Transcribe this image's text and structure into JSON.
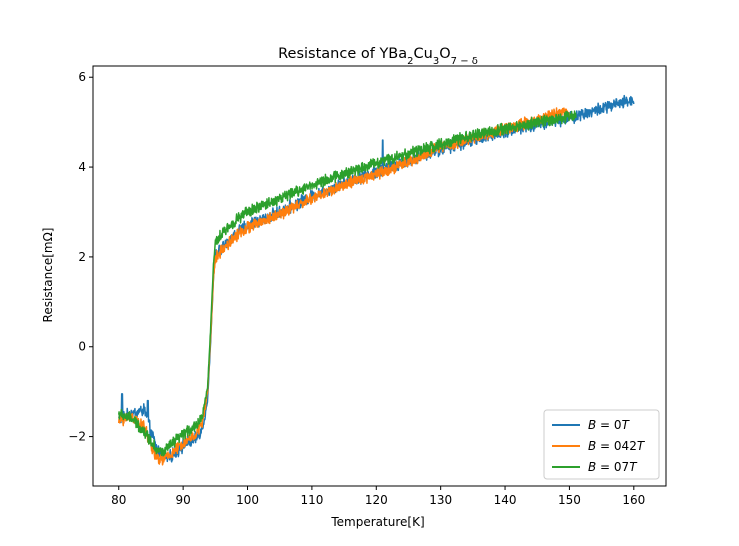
{
  "chart_data": {
    "type": "line",
    "title": {
      "text": "Resistance of YBa",
      "sub1": "2",
      "mid1": "Cu",
      "sub2": "3",
      "mid2": "O",
      "sub3": "7 − δ"
    },
    "xlabel": "Temperature[K]",
    "ylabel": "Resistance[mΩ]",
    "xlim": [
      76,
      165
    ],
    "ylim": [
      -3.1,
      6.25
    ],
    "xticks": [
      80,
      90,
      100,
      110,
      120,
      130,
      140,
      150,
      160
    ],
    "yticks": [
      -2,
      0,
      2,
      4,
      6
    ],
    "ytick_labels": [
      "−2",
      "0",
      "2",
      "4",
      "6"
    ],
    "grid": false,
    "legend_position": "lower right",
    "series": [
      {
        "name": "B = 0T",
        "label_var": "B",
        "label_val": "0",
        "label_unit": "T",
        "color": "#1f77b4",
        "noise": 0.11,
        "points": [
          [
            80,
            -1.6
          ],
          [
            82,
            -1.5
          ],
          [
            84,
            -1.4
          ],
          [
            85,
            -1.9
          ],
          [
            86,
            -2.3
          ],
          [
            87,
            -2.45
          ],
          [
            88,
            -2.45
          ],
          [
            90,
            -2.2
          ],
          [
            92,
            -2.05
          ],
          [
            93,
            -1.8
          ],
          [
            93.8,
            -1.2
          ],
          [
            94.3,
            0.2
          ],
          [
            94.7,
            1.5
          ],
          [
            95,
            2.0
          ],
          [
            96,
            2.2
          ],
          [
            98,
            2.5
          ],
          [
            100,
            2.7
          ],
          [
            105,
            3.0
          ],
          [
            110,
            3.35
          ],
          [
            115,
            3.65
          ],
          [
            120,
            3.9
          ],
          [
            125,
            4.15
          ],
          [
            130,
            4.4
          ],
          [
            135,
            4.6
          ],
          [
            140,
            4.8
          ],
          [
            145,
            4.95
          ],
          [
            150,
            5.1
          ],
          [
            155,
            5.3
          ],
          [
            160,
            5.5
          ]
        ],
        "spikes": [
          [
            121,
            4.6
          ],
          [
            84.5,
            -1.2
          ],
          [
            80.5,
            -1.05
          ]
        ]
      },
      {
        "name": "B = 042T",
        "label_var": "B",
        "label_val": "042",
        "label_unit": "T",
        "color": "#ff7f0e",
        "noise": 0.1,
        "points": [
          [
            80,
            -1.65
          ],
          [
            82,
            -1.55
          ],
          [
            84,
            -1.8
          ],
          [
            85,
            -2.2
          ],
          [
            86,
            -2.5
          ],
          [
            87,
            -2.5
          ],
          [
            88,
            -2.4
          ],
          [
            90,
            -2.15
          ],
          [
            92,
            -1.95
          ],
          [
            93,
            -1.7
          ],
          [
            93.8,
            -1.0
          ],
          [
            94.3,
            0.3
          ],
          [
            94.7,
            1.5
          ],
          [
            95,
            1.95
          ],
          [
            96,
            2.15
          ],
          [
            98,
            2.45
          ],
          [
            100,
            2.65
          ],
          [
            105,
            2.95
          ],
          [
            110,
            3.3
          ],
          [
            115,
            3.6
          ],
          [
            120,
            3.85
          ],
          [
            125,
            4.1
          ],
          [
            130,
            4.45
          ],
          [
            135,
            4.65
          ],
          [
            140,
            4.85
          ],
          [
            145,
            5.05
          ],
          [
            150,
            5.25
          ]
        ],
        "spikes": []
      },
      {
        "name": "B = 07T",
        "label_var": "B",
        "label_val": "07",
        "label_unit": "T",
        "color": "#2ca02c",
        "noise": 0.1,
        "points": [
          [
            80,
            -1.5
          ],
          [
            82,
            -1.6
          ],
          [
            84,
            -1.9
          ],
          [
            85,
            -2.1
          ],
          [
            86,
            -2.3
          ],
          [
            87,
            -2.35
          ],
          [
            88,
            -2.2
          ],
          [
            90,
            -1.95
          ],
          [
            92,
            -1.75
          ],
          [
            93,
            -1.55
          ],
          [
            93.8,
            -0.9
          ],
          [
            94.3,
            0.5
          ],
          [
            94.7,
            1.8
          ],
          [
            95,
            2.3
          ],
          [
            96,
            2.5
          ],
          [
            98,
            2.8
          ],
          [
            100,
            3.0
          ],
          [
            105,
            3.3
          ],
          [
            110,
            3.6
          ],
          [
            115,
            3.85
          ],
          [
            120,
            4.1
          ],
          [
            125,
            4.3
          ],
          [
            130,
            4.5
          ],
          [
            135,
            4.7
          ],
          [
            140,
            4.85
          ],
          [
            145,
            5.0
          ],
          [
            151,
            5.15
          ]
        ],
        "spikes": []
      }
    ]
  }
}
